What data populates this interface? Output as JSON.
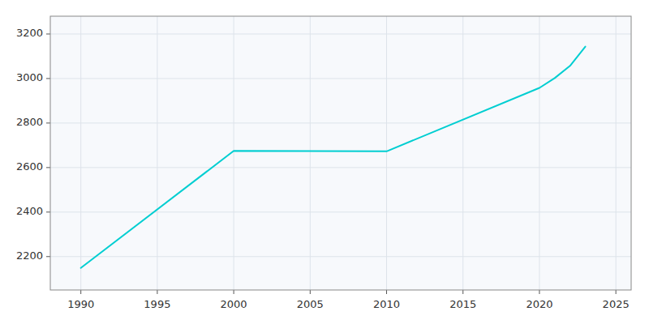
{
  "chart_data": {
    "type": "line",
    "x": [
      1990,
      2000,
      2010,
      2020,
      2021,
      2022,
      2023
    ],
    "values": [
      2149,
      2675,
      2673,
      2958,
      3002,
      3057,
      3143
    ],
    "color": "#00CED1",
    "xlim": [
      1988,
      2026
    ],
    "ylim": [
      2050,
      3280
    ],
    "xticks": [
      1990,
      1995,
      2000,
      2005,
      2010,
      2015,
      2020,
      2025
    ],
    "yticks": [
      2200,
      2400,
      2600,
      2800,
      3000,
      3200
    ],
    "grid": true
  }
}
